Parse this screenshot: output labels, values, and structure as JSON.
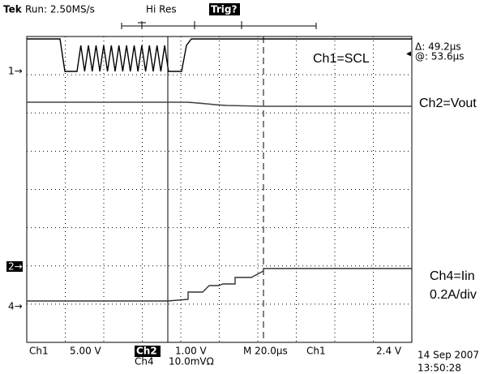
{
  "header": {
    "brand": "Tek",
    "status": "Run: 2.50MS/s",
    "mode": "Hi Res",
    "trigger": "Trig?"
  },
  "markers": [
    "1→",
    "2→",
    "4→"
  ],
  "cursors": {
    "delta": "Δ: 49.2µs",
    "at": "@: 53.6µs"
  },
  "labels": [
    "Ch1=SCL",
    "Ch2=Vout",
    "Ch4=Iin",
    "0.2A/div"
  ],
  "footer": {
    "ch1": "Ch1",
    "ch1_scale": "5.00 V",
    "ch2": "Ch2",
    "ch2_scale": "1.00 V",
    "timebase": "M 20.0µs",
    "trig_src": "Ch1",
    "trig_level": "2.4 V",
    "ch4": "Ch4",
    "ch4_scale": "10.0mVΩ",
    "date": "14 Sep 2007",
    "time": "13:50:28"
  }
}
